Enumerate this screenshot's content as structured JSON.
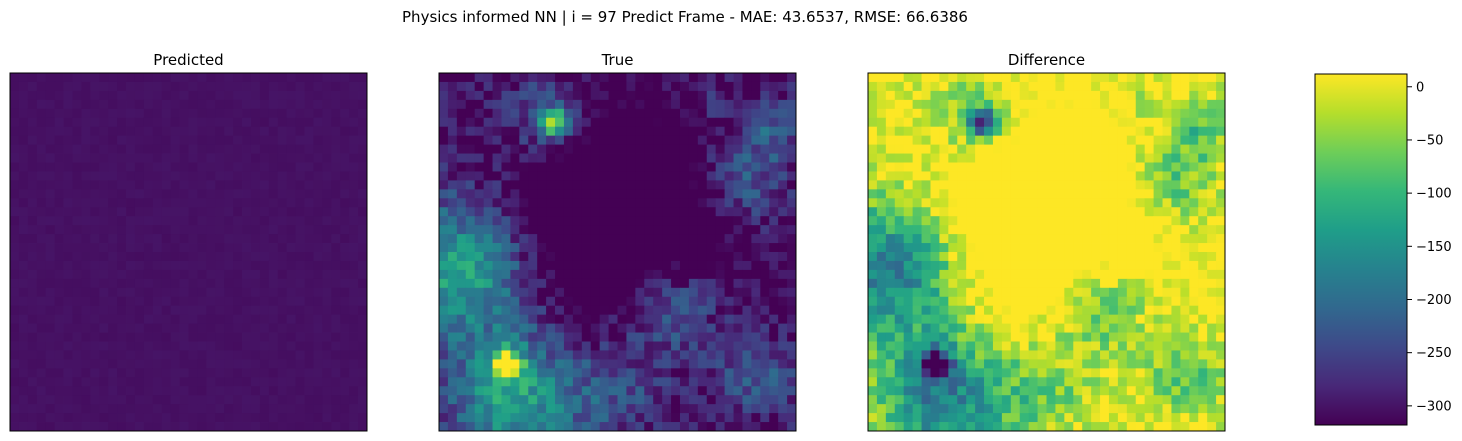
{
  "figure": {
    "suptitle": "Physics informed NN | i = 97 Predict Frame - MAE: 43.6537, RMSE: 66.6386"
  },
  "chart_data": [
    {
      "type": "heatmap",
      "title": "Predicted",
      "grid_rows": 40,
      "grid_cols": 40,
      "colormap": "viridis",
      "axes_ticks": false,
      "value_description": "nearly uniform, all cells close to the colormap minimum",
      "approx_value_range": [
        0,
        15
      ]
    },
    {
      "type": "heatmap",
      "title": "True",
      "grid_rows": 40,
      "grid_cols": 40,
      "colormap": "viridis",
      "axes_ticks": false,
      "value_description": "mostly low values (dark purple) with blue/teal regions on left, bottom and right; a few bright yellow-green spots near top-left and bottom-left",
      "approx_value_range": [
        0,
        330
      ]
    },
    {
      "type": "heatmap",
      "title": "Difference",
      "grid_rows": 40,
      "grid_cols": 40,
      "colormap": "viridis",
      "axes_ticks": false,
      "value_description": "mostly near 0 (yellow) with negative green/teal/blue regions along left, bottom and scattered patches; darkest near top-left",
      "approx_value_range": [
        -320,
        12
      ]
    }
  ],
  "colorbar": {
    "colormap": "viridis",
    "vmin": -318,
    "vmax": 12,
    "ticks": [
      0,
      -50,
      -100,
      -150,
      -200,
      -250,
      -300
    ],
    "tick_labels": [
      "0",
      "−50",
      "−100",
      "−150",
      "−200",
      "−250",
      "−300"
    ]
  },
  "colors": {
    "viridis": [
      "#440154",
      "#482878",
      "#3e4989",
      "#31688e",
      "#26828e",
      "#1f9e89",
      "#35b779",
      "#6ece58",
      "#b5de2b",
      "#fde725"
    ]
  }
}
